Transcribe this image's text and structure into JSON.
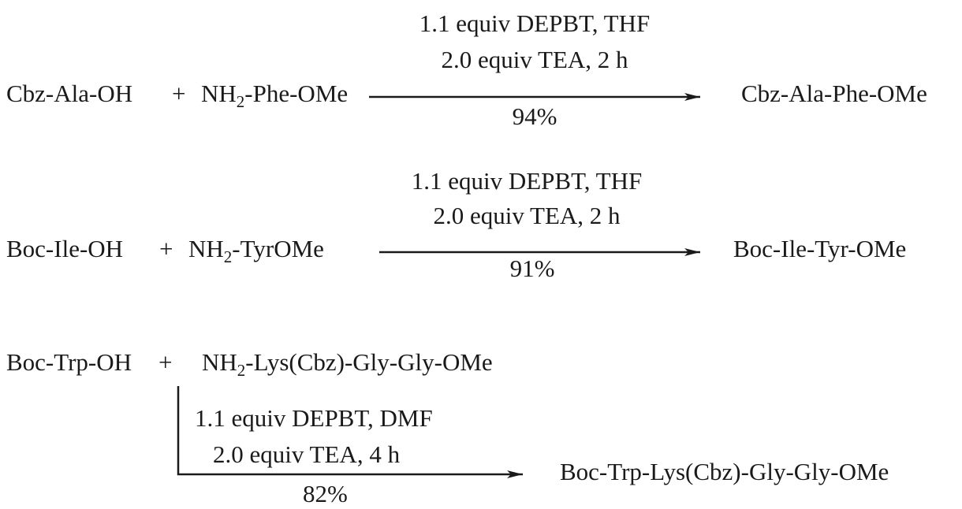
{
  "reactions": [
    {
      "reactant1": "Cbz-Ala-OH",
      "plus": "+",
      "reactant2_prefix": "NH",
      "reactant2_sub": "2",
      "reactant2_suffix": "-Phe-OMe",
      "condition1": "1.1 equiv DEPBT, THF",
      "condition2": "2.0 equiv TEA, 2 h",
      "yield": "94%",
      "product": "Cbz-Ala-Phe-OMe"
    },
    {
      "reactant1": "Boc-Ile-OH",
      "plus": "+",
      "reactant2_prefix": "NH",
      "reactant2_sub": "2",
      "reactant2_suffix": "-TyrOMe",
      "condition1": "1.1 equiv DEPBT, THF",
      "condition2": "2.0 equiv TEA, 2 h",
      "yield": "91%",
      "product": "Boc-Ile-Tyr-OMe"
    },
    {
      "reactant1": "Boc-Trp-OH",
      "plus": "+",
      "reactant2_prefix": "NH",
      "reactant2_sub": "2",
      "reactant2_suffix": "-Lys(Cbz)-Gly-Gly-OMe",
      "condition1": "1.1 equiv DEPBT, DMF",
      "condition2": "2.0 equiv TEA, 4 h",
      "yield": "82%",
      "product": "Boc-Trp-Lys(Cbz)-Gly-Gly-OMe"
    }
  ]
}
